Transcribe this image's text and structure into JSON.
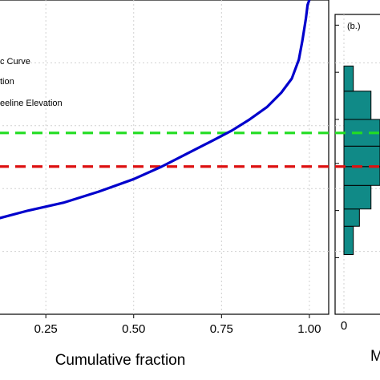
{
  "colors": {
    "curve": "#0000cc",
    "green_line": "#22dd22",
    "red_line": "#dd1111",
    "hist_fill": "#108a87",
    "grid": "#d0d0d0",
    "frame": "#000000"
  },
  "main_panel": {
    "legend": [
      {
        "text": "c Curve",
        "style": "solid",
        "color_key": "curve"
      },
      {
        "text": "tion",
        "style": "dashed",
        "color_key": "green_line"
      },
      {
        "text": "eeline Elevation",
        "style": "dashed",
        "color_key": "red_line"
      }
    ]
  },
  "hist_panel": {
    "tag": "(b.)",
    "x_tick_label": "0",
    "cut_label": "M"
  },
  "chart_data": [
    {
      "type": "line",
      "xlabel": "Cumulative fraction",
      "ylabel": "",
      "xlim": [
        0.115,
        1.055
      ],
      "ylim": [
        0,
        1
      ],
      "x_ticks": [
        0.25,
        0.5,
        0.75,
        1.0
      ],
      "x_tick_labels": [
        "0.25",
        "0.50",
        "0.75",
        "1.00"
      ],
      "grid": true,
      "series": [
        {
          "color_key": "curve",
          "x": [
            0.115,
            0.2,
            0.3,
            0.4,
            0.5,
            0.58,
            0.65,
            0.72,
            0.78,
            0.83,
            0.88,
            0.92,
            0.95,
            0.97,
            0.98,
            0.99,
            0.995,
            1.0
          ],
          "y": [
            0.305,
            0.33,
            0.355,
            0.39,
            0.43,
            0.47,
            0.51,
            0.55,
            0.585,
            0.62,
            0.66,
            0.705,
            0.75,
            0.81,
            0.87,
            0.94,
            0.985,
            1.0
          ]
        }
      ],
      "hlines": [
        {
          "y": 0.577,
          "color_key": "green_line",
          "style": "dashed"
        },
        {
          "y": 0.47,
          "color_key": "red_line",
          "style": "dashed"
        }
      ]
    },
    {
      "type": "bar",
      "orientation": "horizontal",
      "ylim": [
        0,
        1
      ],
      "bins": [
        {
          "y0": 0.19,
          "y1": 0.28,
          "value": 0.26
        },
        {
          "y0": 0.28,
          "y1": 0.335,
          "value": 0.43
        },
        {
          "y0": 0.335,
          "y1": 0.41,
          "value": 0.75
        },
        {
          "y0": 0.41,
          "y1": 0.47,
          "value": 1.0
        },
        {
          "y0": 0.47,
          "y1": 0.535,
          "value": 1.0
        },
        {
          "y0": 0.535,
          "y1": 0.62,
          "value": 1.0
        },
        {
          "y0": 0.62,
          "y1": 0.71,
          "value": 0.75
        },
        {
          "y0": 0.71,
          "y1": 0.79,
          "value": 0.26
        }
      ],
      "hlines": [
        {
          "y": 0.577,
          "color_key": "green_line"
        },
        {
          "y": 0.47,
          "color_key": "red_line"
        }
      ]
    }
  ]
}
